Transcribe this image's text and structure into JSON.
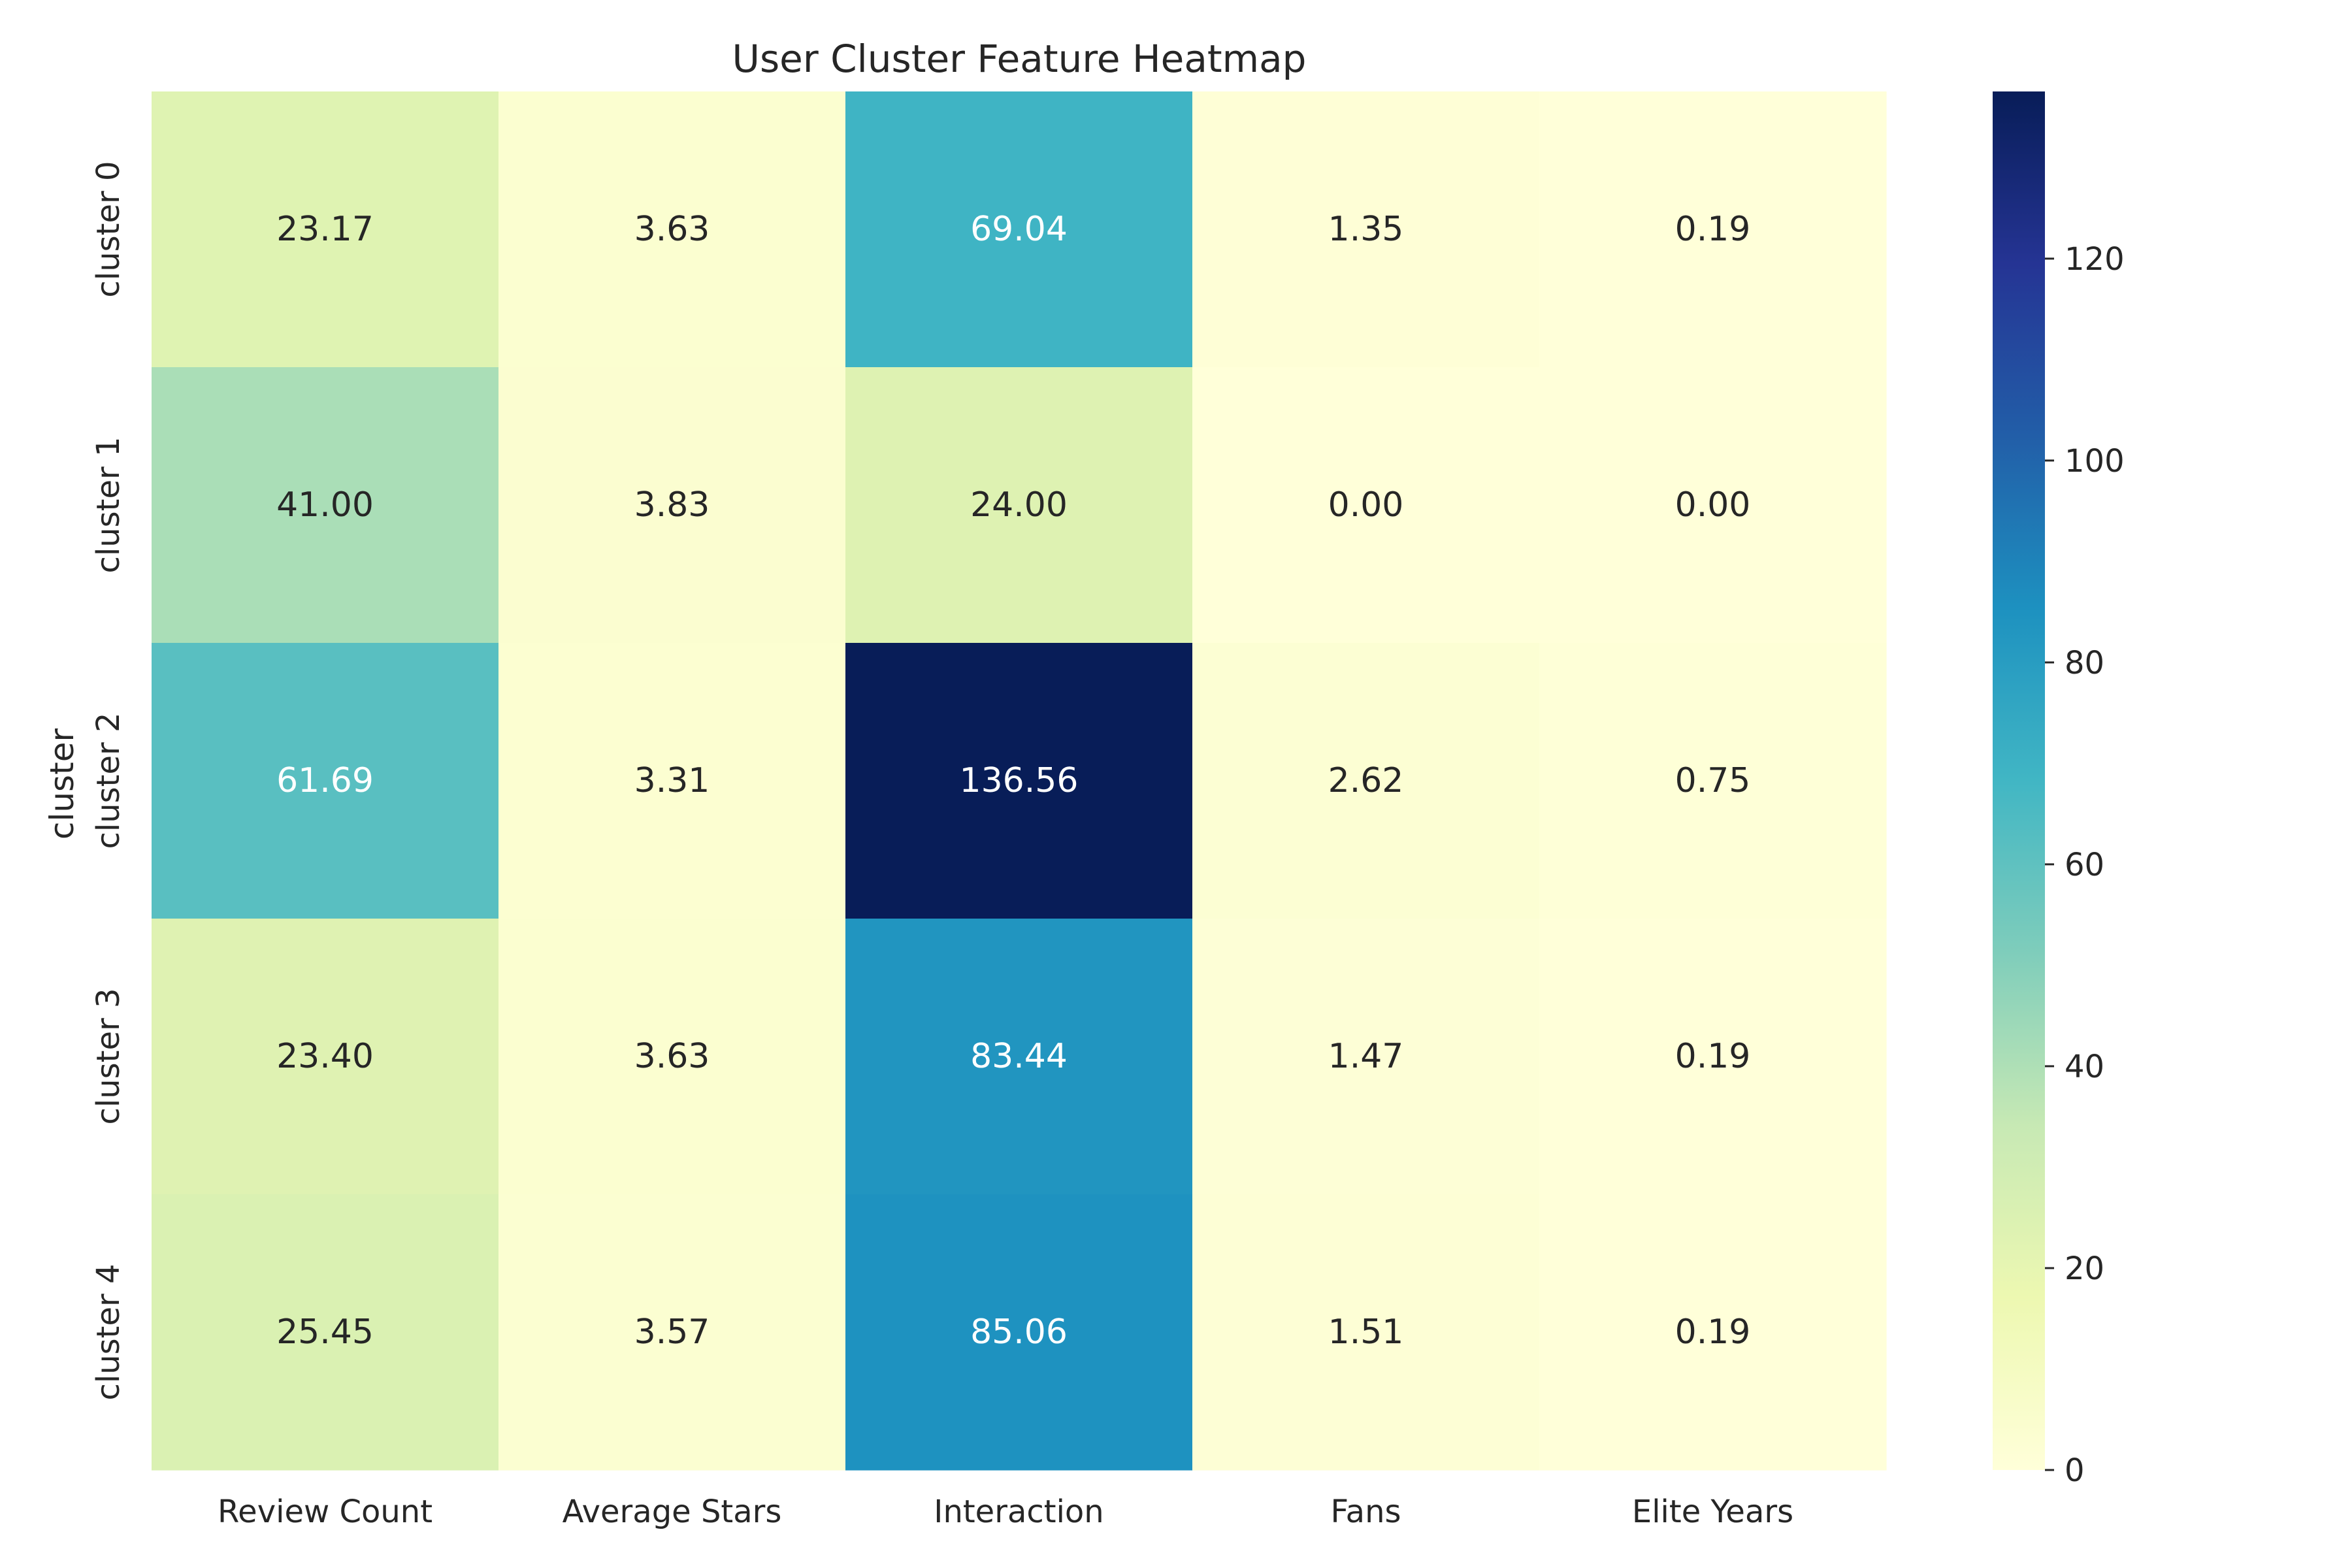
{
  "chart_data": {
    "type": "heatmap",
    "title": "User Cluster Feature Heatmap",
    "xlabel": "",
    "ylabel": "cluster",
    "columns": [
      "Review Count",
      "Average Stars",
      "Interaction",
      "Fans",
      "Elite Years"
    ],
    "rows": [
      "cluster 0",
      "cluster 1",
      "cluster 2",
      "cluster 3",
      "cluster 4"
    ],
    "values": [
      [
        23.17,
        3.63,
        69.04,
        1.35,
        0.19
      ],
      [
        41.0,
        3.83,
        24.0,
        0.0,
        0.0
      ],
      [
        61.69,
        3.31,
        136.56,
        2.62,
        0.75
      ],
      [
        23.4,
        3.63,
        83.44,
        1.47,
        0.19
      ],
      [
        25.45,
        3.57,
        85.06,
        1.51,
        0.19
      ]
    ],
    "cell_labels": [
      [
        "23.17",
        "3.63",
        "69.04",
        "1.35",
        "0.19"
      ],
      [
        "41.00",
        "3.83",
        "24.00",
        "0.00",
        "0.00"
      ],
      [
        "61.69",
        "3.31",
        "136.56",
        "2.62",
        "0.75"
      ],
      [
        "23.40",
        "3.63",
        "83.44",
        "1.47",
        "0.19"
      ],
      [
        "25.45",
        "3.57",
        "85.06",
        "1.51",
        "0.19"
      ]
    ],
    "colorscale": "YlGnBu",
    "color_range": [
      0,
      136.56
    ],
    "colorbar_ticks": [
      0,
      20,
      40,
      60,
      80,
      100,
      120
    ],
    "colorbar_tick_labels": [
      "0",
      "20",
      "40",
      "60",
      "80",
      "100",
      "120"
    ],
    "legend_position": "right",
    "grid": false
  }
}
